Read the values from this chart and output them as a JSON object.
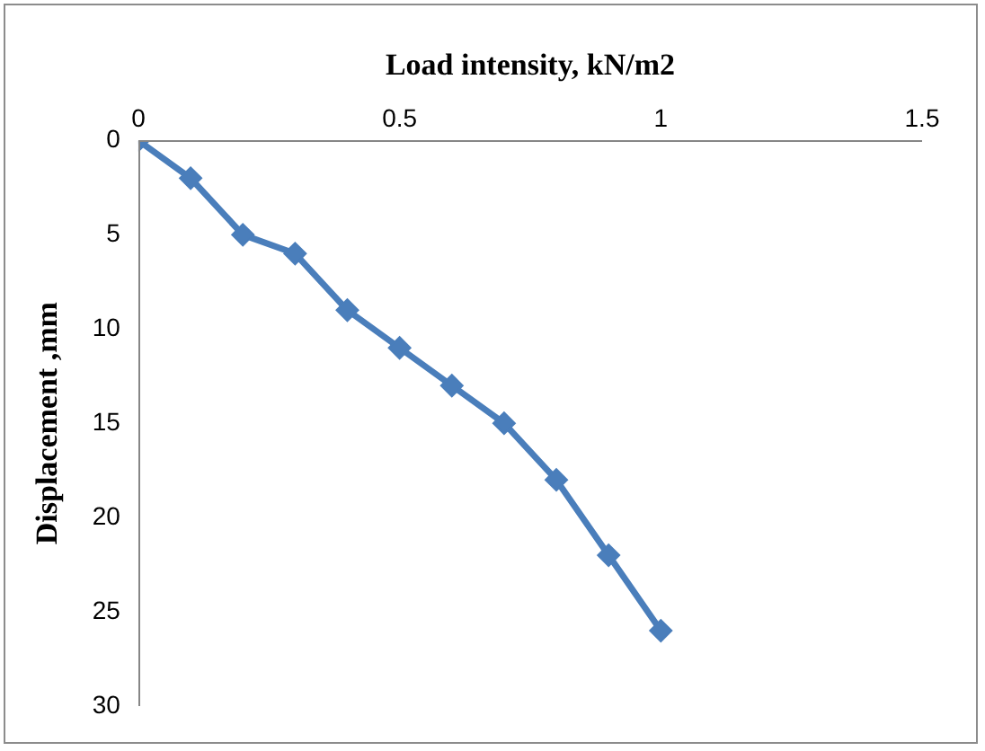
{
  "chart_data": {
    "type": "line",
    "xlabel": "Load intensity, kN/m2",
    "ylabel": "Displacement ,mm",
    "x": [
      0,
      0.1,
      0.2,
      0.3,
      0.4,
      0.5,
      0.6,
      0.7,
      0.8,
      0.9,
      1
    ],
    "series": [
      {
        "color": "#4a7ebb",
        "values": [
          0,
          2,
          5,
          6,
          9,
          11,
          13,
          15,
          18,
          22,
          26
        ]
      }
    ],
    "xlim": [
      0,
      1.5
    ],
    "xticks": [
      0,
      0.5,
      1,
      1.5
    ],
    "ylim": [
      30,
      0
    ],
    "yticks": [
      0,
      5,
      10,
      15,
      20,
      25,
      30
    ],
    "grid": false,
    "legend": false,
    "marker": "diamond",
    "line_style": "solid"
  }
}
